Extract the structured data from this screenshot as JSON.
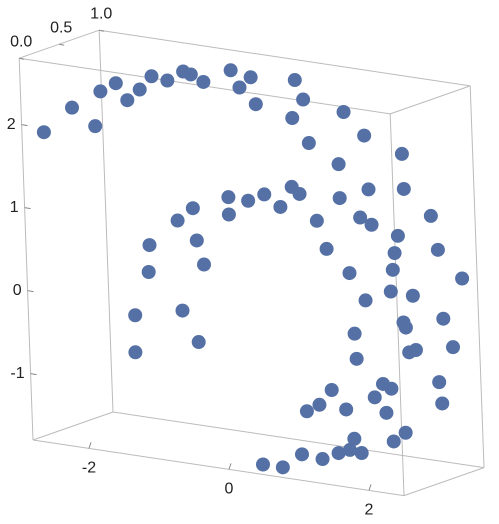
{
  "chart_data": {
    "type": "scatter3d",
    "color": "#5470a5",
    "xlim": [
      -2.8,
      2.5
    ],
    "ylim": [
      0,
      1
    ],
    "zlim": [
      -1.8,
      2.8
    ],
    "xticks": [
      -2,
      0,
      2
    ],
    "yticks": [
      {
        "value": 0,
        "label": "0.0"
      },
      {
        "value": 0.5,
        "label": "0.5"
      },
      {
        "value": 1,
        "label": "1.0"
      }
    ],
    "zticks": [
      -1,
      0,
      1,
      2
    ],
    "x": [
      -2.6,
      -2.3,
      -2.0,
      -1.6,
      -1.2,
      -0.8,
      -0.4,
      0,
      0.4,
      0.8,
      1.2,
      1.5,
      1.8,
      2.0,
      2.2,
      2.3,
      2.35,
      2.3,
      2.2,
      2.0,
      1.7,
      1.35,
      1.0,
      0.6,
      0.2,
      -1.4,
      -1.5,
      -1.4,
      -1.2,
      -0.9,
      -0.5,
      -0.1,
      0.3,
      0.7,
      1.1,
      1.4,
      1.6,
      1.7,
      1.7,
      1.6,
      1.4,
      1.1,
      0.8,
      -2.5,
      -2.2,
      -1.9,
      -1.5,
      -1.1,
      -0.7,
      -0.3,
      0.1,
      0.5,
      0.9,
      1.3,
      1.6,
      1.9,
      2.1,
      2.3,
      2.4,
      2.4,
      2.35,
      2.25,
      2.05,
      1.8,
      1.45,
      1.1,
      0.7,
      0.3,
      -1.3,
      -1.4,
      -1.3,
      -1.1,
      -0.8,
      -0.4,
      0,
      0.4,
      0.8,
      1.2,
      1.5,
      1.7,
      1.8,
      1.8,
      1.7,
      1.5,
      1.2,
      0.9
    ],
    "y": [
      0.1,
      0.2,
      0.3,
      0.15,
      0.25,
      0.1,
      0.2,
      0.3,
      0.15,
      0.25,
      0.1,
      0.2,
      0.3,
      0.15,
      0.25,
      0.1,
      0.2,
      0.3,
      0.15,
      0.25,
      0.1,
      0.2,
      0.3,
      0.15,
      0.25,
      0.1,
      0.2,
      0.3,
      0.15,
      0.25,
      0.1,
      0.2,
      0.3,
      0.15,
      0.25,
      0.1,
      0.2,
      0.3,
      0.15,
      0.25,
      0.1,
      0.2,
      0.3,
      0.65,
      0.8,
      0.7,
      0.9,
      0.65,
      0.8,
      0.7,
      0.9,
      0.65,
      0.8,
      0.7,
      0.9,
      0.65,
      0.8,
      0.7,
      0.9,
      0.65,
      0.8,
      0.7,
      0.9,
      0.65,
      0.8,
      0.7,
      0.9,
      0.65,
      0.8,
      0.7,
      0.9,
      0.65,
      0.8,
      0.7,
      0.9,
      0.65,
      0.8,
      0.7,
      0.9,
      0.65,
      0.8,
      0.7,
      0.9,
      0.65,
      0.8,
      0.7
    ],
    "z": [
      1.9,
      2.2,
      2.4,
      2.6,
      2.7,
      2.75,
      2.75,
      2.7,
      2.6,
      2.45,
      2.25,
      2.0,
      1.7,
      1.35,
      1.0,
      0.6,
      0.2,
      -0.2,
      -0.6,
      -0.95,
      -1.25,
      -1.5,
      -1.65,
      -1.75,
      -1.8,
      -0.6,
      -0.2,
      0.3,
      0.7,
      1.0,
      1.25,
      1.4,
      1.45,
      1.4,
      1.25,
      1.0,
      0.7,
      0.35,
      0,
      -0.35,
      -0.7,
      -0.95,
      -1.1,
      1.8,
      2.1,
      2.3,
      2.5,
      2.6,
      2.65,
      2.65,
      2.6,
      2.5,
      2.35,
      2.15,
      1.9,
      1.6,
      1.25,
      0.9,
      0.5,
      0.1,
      -0.3,
      -0.7,
      -1.05,
      -1.35,
      -1.55,
      -1.7,
      -1.78,
      -1.8,
      -0.7,
      -0.3,
      0.2,
      0.6,
      0.9,
      1.15,
      1.3,
      1.35,
      1.3,
      1.15,
      0.9,
      0.6,
      0.25,
      -0.1,
      -0.45,
      -0.8,
      -1.05,
      -1.2
    ]
  }
}
